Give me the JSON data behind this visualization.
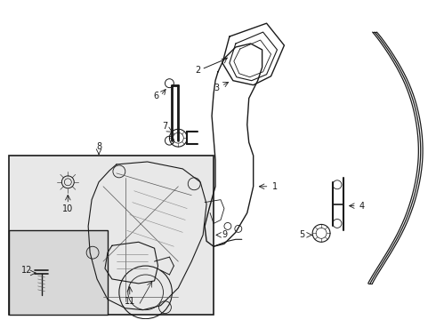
{
  "bg_color": "#ffffff",
  "line_color": "#1a1a1a",
  "figsize": [
    4.9,
    3.6
  ],
  "dpi": 100,
  "lw": 0.8,
  "box_facecolor": "#e8e8e8",
  "inner_box_facecolor": "#d8d8d8"
}
